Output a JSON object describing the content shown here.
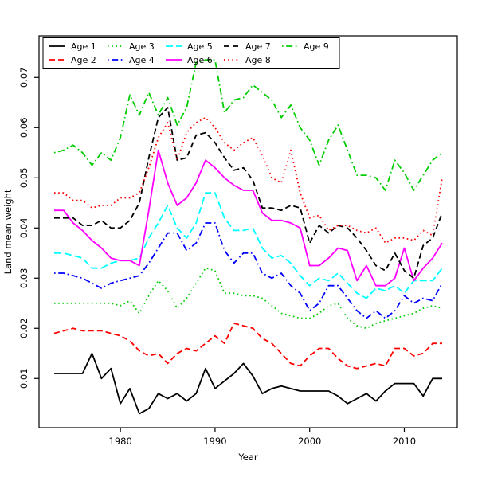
{
  "chart_data": {
    "type": "line",
    "title": "",
    "xlabel": "Year",
    "ylabel": "Land mean weight",
    "x_ticks": [
      1980,
      1990,
      2000,
      2010
    ],
    "y_ticks": [
      0.01,
      0.02,
      0.03,
      0.04,
      0.05,
      0.06,
      0.07
    ],
    "xlim": [
      1971.4,
      2015.6
    ],
    "ylim": [
      0.0002,
      0.0783
    ],
    "grid": false,
    "legend_position": "top-left-inside",
    "legend_rows": 2,
    "legend_columns": 5,
    "years": [
      1973,
      1974,
      1975,
      1976,
      1977,
      1978,
      1979,
      1980,
      1981,
      1982,
      1983,
      1984,
      1985,
      1986,
      1987,
      1988,
      1989,
      1990,
      1991,
      1992,
      1993,
      1994,
      1995,
      1996,
      1997,
      1998,
      1999,
      2000,
      2001,
      2002,
      2003,
      2004,
      2005,
      2006,
      2007,
      2008,
      2009,
      2010,
      2011,
      2012,
      2013,
      2014
    ],
    "series": [
      {
        "name": "Age 1",
        "color": "#000000",
        "linetype": "solid",
        "values": [
          0.011,
          0.011,
          0.011,
          0.011,
          0.015,
          0.01,
          0.012,
          0.005,
          0.008,
          0.003,
          0.004,
          0.007,
          0.006,
          0.007,
          0.0055,
          0.007,
          0.012,
          0.008,
          0.0095,
          0.011,
          0.013,
          0.0105,
          0.007,
          0.008,
          0.0085,
          0.008,
          0.0075,
          0.0075,
          0.0075,
          0.0075,
          0.0065,
          0.005,
          0.006,
          0.007,
          0.0055,
          0.0075,
          0.009,
          0.009,
          0.009,
          0.0065,
          0.01,
          0.01
        ]
      },
      {
        "name": "Age 2",
        "color": "#FF0000",
        "linetype": "dashed",
        "values": [
          0.019,
          0.0195,
          0.02,
          0.0195,
          0.0195,
          0.0195,
          0.019,
          0.0185,
          0.0175,
          0.0155,
          0.0145,
          0.015,
          0.013,
          0.015,
          0.016,
          0.0155,
          0.017,
          0.0185,
          0.017,
          0.021,
          0.0205,
          0.02,
          0.018,
          0.017,
          0.015,
          0.013,
          0.0125,
          0.0145,
          0.016,
          0.016,
          0.014,
          0.0125,
          0.012,
          0.0125,
          0.013,
          0.0125,
          0.016,
          0.016,
          0.0145,
          0.015,
          0.017,
          0.017
        ]
      },
      {
        "name": "Age 3",
        "color": "#00CD00",
        "linetype": "dotted",
        "values": [
          0.025,
          0.025,
          0.025,
          0.025,
          0.025,
          0.025,
          0.025,
          0.0245,
          0.0255,
          0.023,
          0.0265,
          0.0295,
          0.0275,
          0.024,
          0.026,
          0.029,
          0.032,
          0.0315,
          0.027,
          0.027,
          0.0265,
          0.0265,
          0.026,
          0.0245,
          0.023,
          0.0225,
          0.022,
          0.022,
          0.023,
          0.0245,
          0.025,
          0.022,
          0.0205,
          0.02,
          0.021,
          0.0215,
          0.022,
          0.0225,
          0.023,
          0.024,
          0.0245,
          0.024
        ]
      },
      {
        "name": "Age 4",
        "color": "#0000FF",
        "linetype": "dotdash",
        "values": [
          0.031,
          0.031,
          0.0305,
          0.03,
          0.029,
          0.028,
          0.029,
          0.0295,
          0.03,
          0.0305,
          0.033,
          0.036,
          0.039,
          0.039,
          0.0355,
          0.037,
          0.041,
          0.041,
          0.0355,
          0.033,
          0.035,
          0.035,
          0.031,
          0.03,
          0.031,
          0.0285,
          0.027,
          0.0235,
          0.025,
          0.0285,
          0.0285,
          0.026,
          0.0235,
          0.022,
          0.0235,
          0.022,
          0.0235,
          0.0265,
          0.025,
          0.026,
          0.0255,
          0.029
        ]
      },
      {
        "name": "Age 5",
        "color": "#00FFFF",
        "linetype": "longdash",
        "values": [
          0.035,
          0.035,
          0.0345,
          0.034,
          0.032,
          0.032,
          0.033,
          0.0335,
          0.0335,
          0.034,
          0.038,
          0.041,
          0.0445,
          0.04,
          0.038,
          0.041,
          0.047,
          0.047,
          0.042,
          0.0395,
          0.0395,
          0.04,
          0.036,
          0.034,
          0.0345,
          0.033,
          0.0305,
          0.0285,
          0.03,
          0.0295,
          0.031,
          0.029,
          0.027,
          0.026,
          0.028,
          0.0275,
          0.0285,
          0.027,
          0.0295,
          0.0295,
          0.0295,
          0.032
        ]
      },
      {
        "name": "Age 6",
        "color": "#FF00FF",
        "linetype": "solid",
        "values": [
          0.0435,
          0.0435,
          0.041,
          0.0395,
          0.0375,
          0.036,
          0.034,
          0.0335,
          0.0335,
          0.0325,
          0.0435,
          0.0555,
          0.049,
          0.0445,
          0.046,
          0.049,
          0.0535,
          0.052,
          0.05,
          0.0485,
          0.0475,
          0.0475,
          0.043,
          0.0415,
          0.0415,
          0.041,
          0.04,
          0.0325,
          0.0325,
          0.034,
          0.036,
          0.0355,
          0.0295,
          0.0325,
          0.0285,
          0.0285,
          0.03,
          0.036,
          0.0295,
          0.032,
          0.034,
          0.037
        ]
      },
      {
        "name": "Age 7",
        "color": "#000000",
        "linetype": "dashed",
        "values": [
          0.042,
          0.042,
          0.042,
          0.0405,
          0.0405,
          0.0415,
          0.04,
          0.04,
          0.0415,
          0.045,
          0.054,
          0.062,
          0.064,
          0.0535,
          0.054,
          0.0585,
          0.059,
          0.057,
          0.054,
          0.0515,
          0.052,
          0.0495,
          0.044,
          0.044,
          0.0435,
          0.0445,
          0.044,
          0.037,
          0.0405,
          0.039,
          0.0405,
          0.04,
          0.038,
          0.0355,
          0.0325,
          0.0315,
          0.035,
          0.0315,
          0.03,
          0.0365,
          0.038,
          0.043
        ]
      },
      {
        "name": "Age 8",
        "color": "#FF0000",
        "linetype": "dotted",
        "values": [
          0.047,
          0.047,
          0.0455,
          0.0455,
          0.044,
          0.0445,
          0.0445,
          0.046,
          0.046,
          0.047,
          0.052,
          0.058,
          0.061,
          0.0535,
          0.059,
          0.061,
          0.062,
          0.06,
          0.057,
          0.0555,
          0.057,
          0.058,
          0.0545,
          0.05,
          0.049,
          0.0555,
          0.047,
          0.042,
          0.0425,
          0.0395,
          0.0405,
          0.0405,
          0.0395,
          0.039,
          0.04,
          0.037,
          0.038,
          0.038,
          0.0375,
          0.0395,
          0.0385,
          0.05
        ]
      },
      {
        "name": "Age 9",
        "color": "#00CD00",
        "linetype": "dotdash",
        "values": [
          0.055,
          0.0555,
          0.0565,
          0.055,
          0.0525,
          0.055,
          0.0535,
          0.058,
          0.0665,
          0.0625,
          0.067,
          0.0625,
          0.066,
          0.0605,
          0.064,
          0.073,
          0.0735,
          0.0735,
          0.063,
          0.0655,
          0.066,
          0.0685,
          0.067,
          0.0655,
          0.062,
          0.0645,
          0.06,
          0.0575,
          0.0525,
          0.0575,
          0.0605,
          0.0555,
          0.0505,
          0.0505,
          0.05,
          0.0475,
          0.0535,
          0.051,
          0.0475,
          0.0505,
          0.0535,
          0.055
        ]
      }
    ]
  }
}
